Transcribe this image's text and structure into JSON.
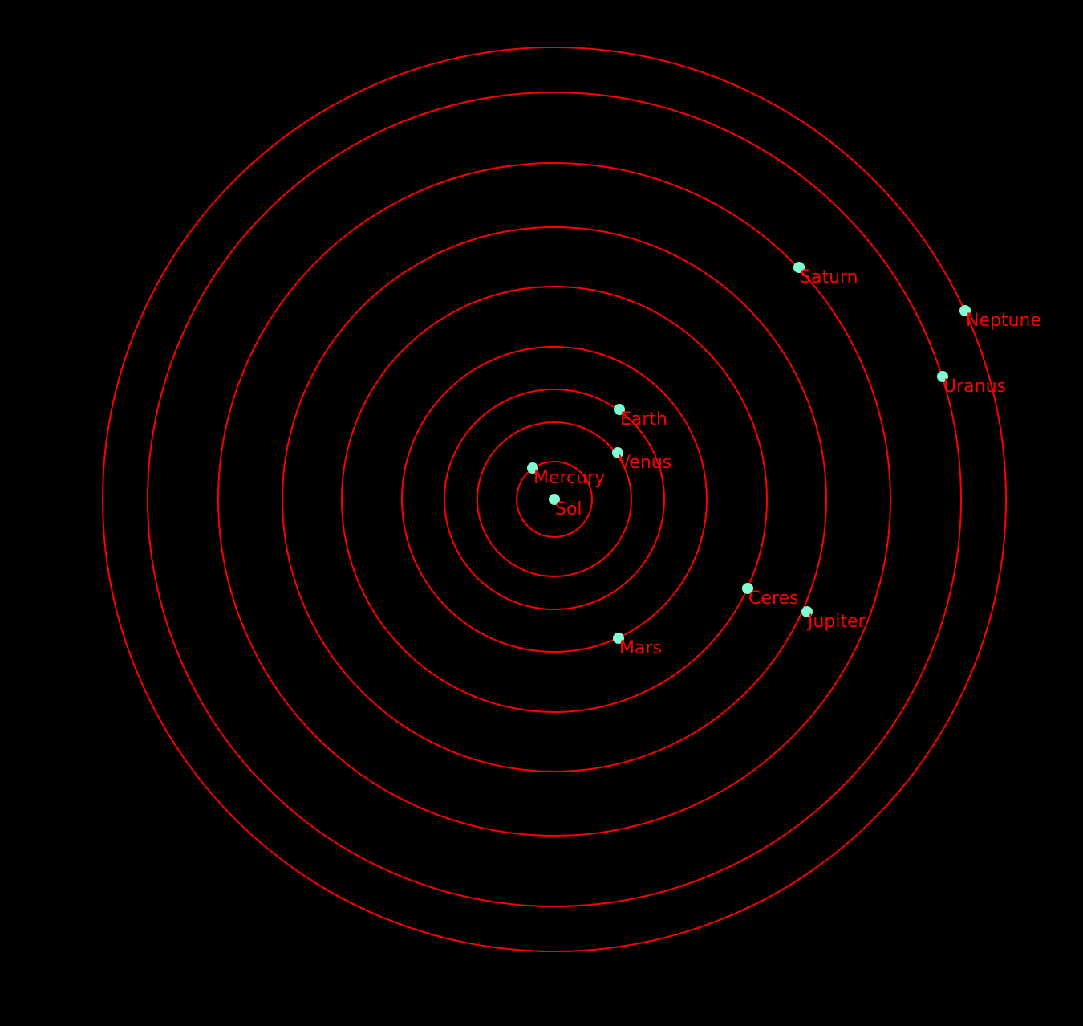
{
  "colors": {
    "background": "#000000",
    "orbit": "#ff0000",
    "body": "#7fffd4",
    "label": "#ff0000"
  },
  "bodies": [
    {
      "name": "Sol",
      "icon": "star-dot-icon"
    },
    {
      "name": "Mercury",
      "icon": "planet-dot-icon"
    },
    {
      "name": "Venus",
      "icon": "planet-dot-icon"
    },
    {
      "name": "Earth",
      "icon": "planet-dot-icon"
    },
    {
      "name": "Mars",
      "icon": "planet-dot-icon"
    },
    {
      "name": "Ceres",
      "icon": "planet-dot-icon"
    },
    {
      "name": "Jupiter",
      "icon": "planet-dot-icon"
    },
    {
      "name": "Saturn",
      "icon": "planet-dot-icon"
    },
    {
      "name": "Uranus",
      "icon": "planet-dot-icon"
    },
    {
      "name": "Neptune",
      "icon": "planet-dot-icon"
    }
  ]
}
